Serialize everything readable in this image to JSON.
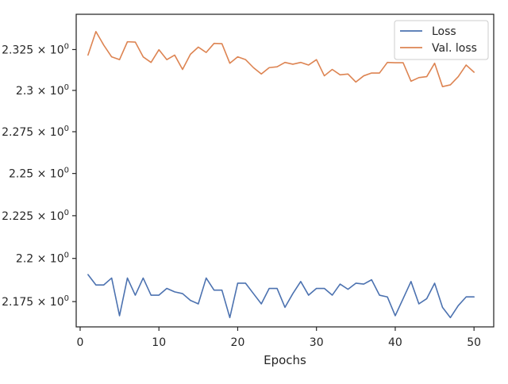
{
  "chart_data": {
    "type": "line",
    "title": "",
    "xlabel": "Epochs",
    "ylabel": "",
    "xlim": [
      -0.5,
      52.5
    ],
    "ylim": [
      2.1605,
      2.3468
    ],
    "x_ticks": [
      0,
      10,
      20,
      30,
      40,
      50
    ],
    "x_tick_labels": [
      "0",
      "10",
      "20",
      "30",
      "40",
      "50"
    ],
    "y_ticks": [
      2.175,
      2.2,
      2.225,
      2.25,
      2.275,
      2.3,
      2.325
    ],
    "y_tick_labels": [
      [
        "2.175 × 10",
        "0"
      ],
      [
        "2.2 × 10",
        "0"
      ],
      [
        "2.225 × 10",
        "0"
      ],
      [
        "2.25 × 10",
        "0"
      ],
      [
        "2.275 × 10",
        "0"
      ],
      [
        "2.3 × 10",
        "0"
      ],
      [
        "2.325 × 10",
        "0"
      ]
    ],
    "y_scale": "log",
    "grid": false,
    "legend_position": "top-right",
    "x": [
      1,
      2,
      3,
      4,
      5,
      6,
      7,
      8,
      9,
      10,
      11,
      12,
      13,
      14,
      15,
      16,
      17,
      18,
      19,
      20,
      21,
      22,
      23,
      24,
      25,
      26,
      27,
      28,
      29,
      30,
      31,
      32,
      33,
      34,
      35,
      36,
      37,
      38,
      39,
      40,
      41,
      42,
      43,
      44,
      45,
      46,
      47,
      48,
      49,
      50
    ],
    "series": [
      {
        "name": "Loss",
        "color": "#4c72b0",
        "values": [
          2.1906,
          2.1846,
          2.1846,
          2.1886,
          2.1669,
          2.1886,
          2.1787,
          2.1886,
          2.1787,
          2.1787,
          2.1826,
          2.1806,
          2.1796,
          2.1757,
          2.1737,
          2.1886,
          2.1816,
          2.1816,
          2.1658,
          2.1856,
          2.1856,
          2.1796,
          2.1737,
          2.1826,
          2.1826,
          2.1717,
          2.1796,
          2.1866,
          2.1787,
          2.1826,
          2.1826,
          2.1787,
          2.1851,
          2.1821,
          2.1856,
          2.1851,
          2.1876,
          2.1787,
          2.1777,
          2.1669,
          2.1767,
          2.1866,
          2.1737,
          2.1767,
          2.1856,
          2.1717,
          2.1658,
          2.1727,
          2.1777,
          2.1777
        ]
      },
      {
        "name": "Val. loss",
        "color": "#dd8452",
        "values": [
          2.3216,
          2.3361,
          2.3277,
          2.3205,
          2.3188,
          2.3298,
          2.3296,
          2.3205,
          2.3171,
          2.3249,
          2.3188,
          2.3216,
          2.3128,
          2.3221,
          2.3265,
          2.3232,
          2.3288,
          2.3286,
          2.3166,
          2.3205,
          2.3188,
          2.3139,
          2.31,
          2.3139,
          2.3144,
          2.3171,
          2.316,
          2.3171,
          2.3155,
          2.3188,
          2.3089,
          2.3128,
          2.3095,
          2.31,
          2.3051,
          2.3089,
          2.3106,
          2.3106,
          2.3171,
          2.3169,
          2.3169,
          2.3056,
          2.3078,
          2.3084,
          2.3166,
          2.3023,
          2.3034,
          2.3084,
          2.3155,
          2.3111
        ]
      }
    ]
  }
}
